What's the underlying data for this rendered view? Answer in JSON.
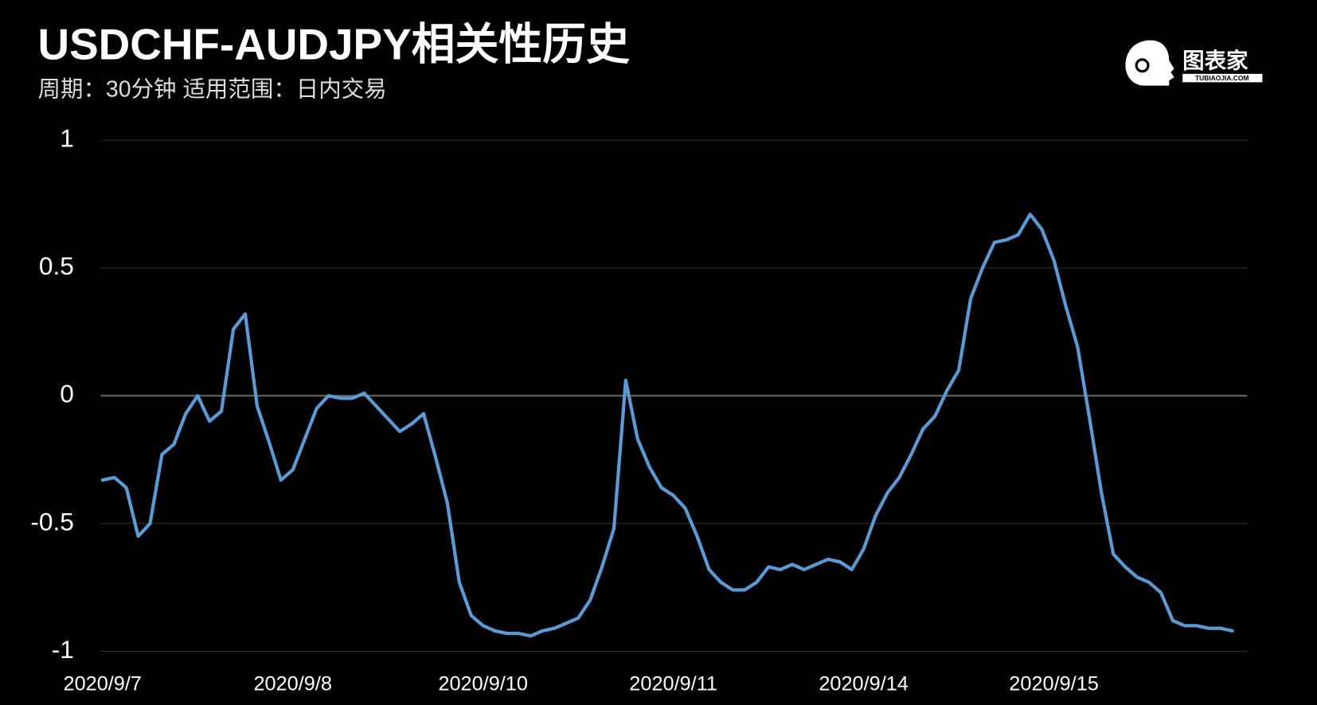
{
  "chart_data": {
    "type": "line",
    "title": "USDCHF-AUDJPY相关性历史",
    "subtitle": "周期：30分钟  适用范围：日内交易",
    "categories": [
      "2020/9/7",
      null,
      null,
      null,
      null,
      null,
      null,
      null,
      null,
      null,
      null,
      null,
      null,
      null,
      null,
      null,
      "2020/9/8",
      null,
      null,
      null,
      null,
      null,
      null,
      null,
      null,
      null,
      null,
      null,
      null,
      null,
      null,
      null,
      "2020/9/10",
      null,
      null,
      null,
      null,
      null,
      null,
      null,
      null,
      null,
      null,
      null,
      null,
      null,
      null,
      null,
      "2020/9/11",
      null,
      null,
      null,
      null,
      null,
      null,
      null,
      null,
      null,
      null,
      null,
      null,
      null,
      null,
      null,
      "2020/9/14",
      null,
      null,
      null,
      null,
      null,
      null,
      null,
      null,
      null,
      null,
      null,
      null,
      null,
      null,
      null,
      "2020/9/15",
      null,
      null,
      null,
      null,
      null,
      null,
      null,
      null,
      null,
      null,
      null,
      null,
      null,
      null,
      null
    ],
    "values": [
      -0.33,
      -0.32,
      -0.36,
      -0.55,
      -0.5,
      -0.23,
      -0.19,
      -0.07,
      0.0,
      -0.1,
      -0.06,
      0.26,
      0.32,
      -0.04,
      -0.18,
      -0.33,
      -0.29,
      -0.17,
      -0.05,
      0.0,
      -0.01,
      -0.01,
      0.01,
      -0.04,
      -0.09,
      -0.14,
      -0.11,
      -0.07,
      -0.24,
      -0.42,
      -0.73,
      -0.86,
      -0.9,
      -0.92,
      -0.93,
      -0.93,
      -0.94,
      -0.92,
      -0.91,
      -0.89,
      -0.87,
      -0.8,
      -0.67,
      -0.52,
      0.06,
      -0.17,
      -0.28,
      -0.36,
      -0.39,
      -0.44,
      -0.55,
      -0.68,
      -0.73,
      -0.76,
      -0.76,
      -0.73,
      -0.67,
      -0.68,
      -0.66,
      -0.68,
      -0.66,
      -0.64,
      -0.65,
      -0.68,
      -0.6,
      -0.47,
      -0.38,
      -0.32,
      -0.23,
      -0.13,
      -0.08,
      0.02,
      0.1,
      0.38,
      0.5,
      0.6,
      0.61,
      0.63,
      0.71,
      0.65,
      0.53,
      0.35,
      0.19,
      -0.09,
      -0.38,
      -0.62,
      -0.67,
      -0.71,
      -0.73,
      -0.77,
      -0.88,
      -0.9,
      -0.9,
      -0.91,
      -0.91,
      -0.92
    ],
    "color": "#5b9bd5",
    "ylim": [
      -1,
      1
    ],
    "yticks": [
      -1,
      -0.5,
      0,
      0.5,
      1
    ],
    "grid": true
  },
  "logo": {
    "text": "图表家",
    "subtext": "TUBIAOJIA.COM"
  }
}
